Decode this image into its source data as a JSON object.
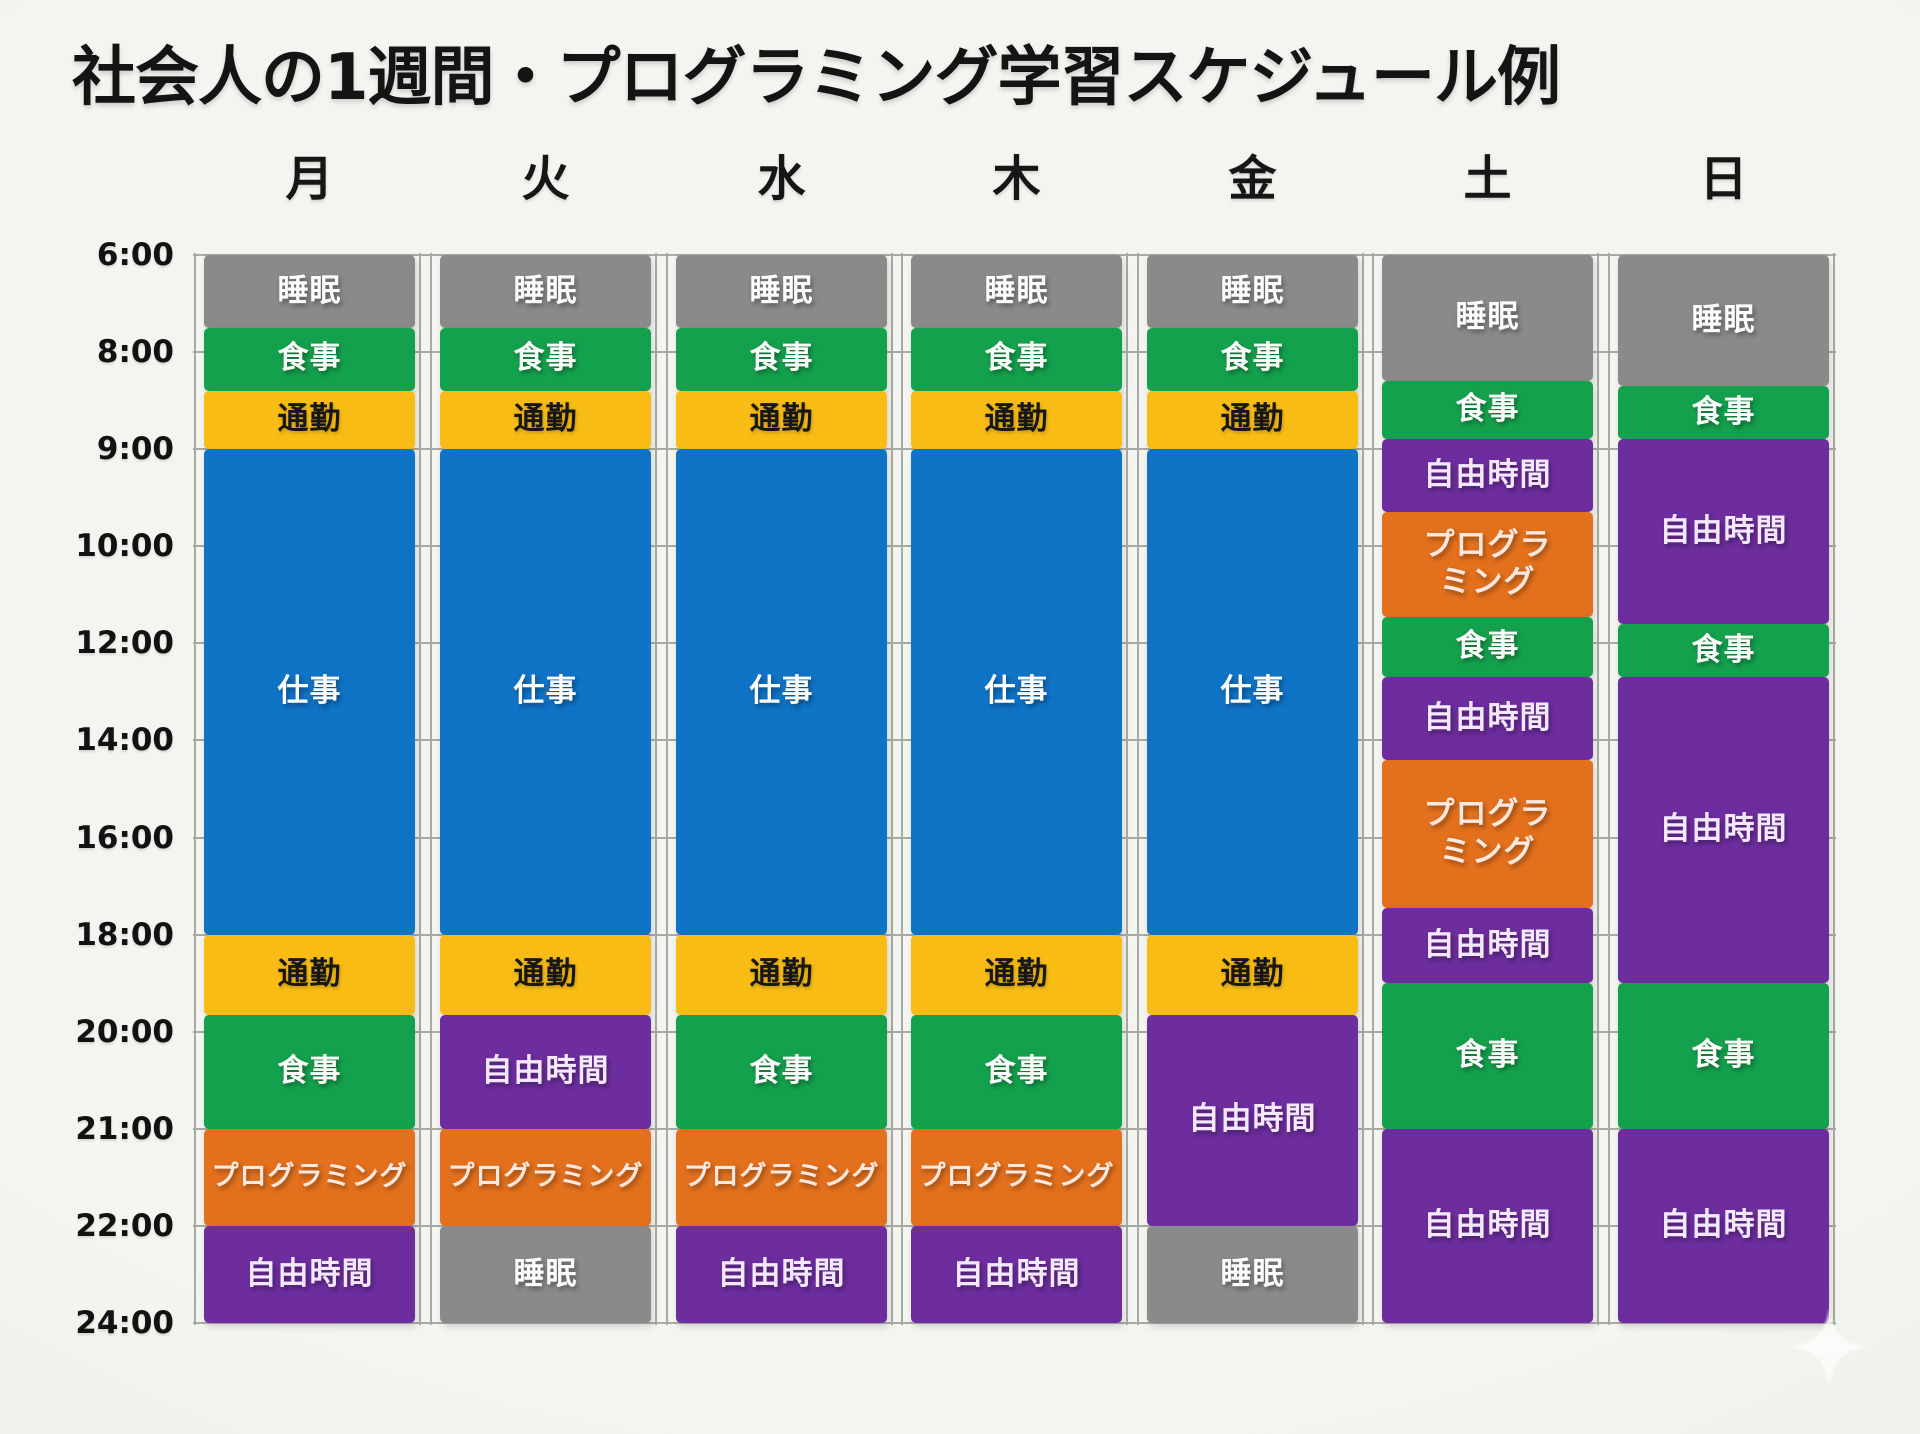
{
  "title": "社会人の1週間・プログラミング学習スケジュール例",
  "watermark": {
    "icon": "sparkle"
  },
  "activities": {
    "sleep": {
      "label": "睡眠",
      "color": "#8a8a8a",
      "text_color": "#fcfcfa"
    },
    "meal": {
      "label": "食事",
      "color": "#14a14d",
      "text_color": "#fcfcfa"
    },
    "commute": {
      "label": "通勤",
      "color": "#f8bc15",
      "text_color": "#171717"
    },
    "work": {
      "label": "仕事",
      "color": "#0f73c6",
      "text_color": "#fcfcfa"
    },
    "programming": {
      "label": "プログラミング",
      "color": "#e2701d",
      "text_color": "#ffe8df"
    },
    "free": {
      "label": "自由時間",
      "color": "#6d2d9e",
      "text_color": "#f3e8fd"
    }
  },
  "chart_data": {
    "type": "bar",
    "variant": "weekly-stacked-time-schedule",
    "title": "社会人の1週間・プログラミング学習スケジュール例",
    "legend": "none",
    "grid": "on",
    "x_axis": {
      "categories": [
        "月",
        "火",
        "水",
        "木",
        "金",
        "土",
        "日"
      ]
    },
    "y_axis": {
      "tick_labels": [
        "6:00",
        "8:00",
        "9:00",
        "10:00",
        "12:00",
        "14:00",
        "16:00",
        "18:00",
        "20:00",
        "21:00",
        "22:00",
        "24:00"
      ],
      "tick_hours": [
        6,
        8,
        9,
        10,
        12,
        14,
        16,
        18,
        20,
        21,
        22,
        24
      ],
      "direction": "top-to-bottom",
      "spacing": "equal per tick interval"
    },
    "days": [
      {
        "id": "mon",
        "label": "月",
        "blocks": [
          {
            "activity": "sleep",
            "start": 6,
            "end": 7.5
          },
          {
            "activity": "meal",
            "start": 7.5,
            "end": 8.4
          },
          {
            "activity": "commute",
            "start": 8.4,
            "end": 9
          },
          {
            "activity": "work",
            "start": 9,
            "end": 18
          },
          {
            "activity": "commute",
            "start": 18,
            "end": 19.65
          },
          {
            "activity": "meal",
            "start": 19.65,
            "end": 21
          },
          {
            "activity": "programming",
            "start": 21,
            "end": 22
          },
          {
            "activity": "free",
            "start": 22,
            "end": 24
          }
        ]
      },
      {
        "id": "tue",
        "label": "火",
        "blocks": [
          {
            "activity": "sleep",
            "start": 6,
            "end": 7.5
          },
          {
            "activity": "meal",
            "start": 7.5,
            "end": 8.4
          },
          {
            "activity": "commute",
            "start": 8.4,
            "end": 9
          },
          {
            "activity": "work",
            "start": 9,
            "end": 18
          },
          {
            "activity": "commute",
            "start": 18,
            "end": 19.65
          },
          {
            "activity": "free",
            "start": 19.65,
            "end": 21
          },
          {
            "activity": "programming",
            "start": 21,
            "end": 22
          },
          {
            "activity": "sleep",
            "start": 22,
            "end": 24
          }
        ]
      },
      {
        "id": "wed",
        "label": "水",
        "blocks": [
          {
            "activity": "sleep",
            "start": 6,
            "end": 7.5
          },
          {
            "activity": "meal",
            "start": 7.5,
            "end": 8.4
          },
          {
            "activity": "commute",
            "start": 8.4,
            "end": 9
          },
          {
            "activity": "work",
            "start": 9,
            "end": 18
          },
          {
            "activity": "commute",
            "start": 18,
            "end": 19.65
          },
          {
            "activity": "meal",
            "start": 19.65,
            "end": 21
          },
          {
            "activity": "programming",
            "start": 21,
            "end": 22
          },
          {
            "activity": "free",
            "start": 22,
            "end": 24
          }
        ]
      },
      {
        "id": "thu",
        "label": "木",
        "blocks": [
          {
            "activity": "sleep",
            "start": 6,
            "end": 7.5
          },
          {
            "activity": "meal",
            "start": 7.5,
            "end": 8.4
          },
          {
            "activity": "commute",
            "start": 8.4,
            "end": 9
          },
          {
            "activity": "work",
            "start": 9,
            "end": 18
          },
          {
            "activity": "commute",
            "start": 18,
            "end": 19.65
          },
          {
            "activity": "meal",
            "start": 19.65,
            "end": 21
          },
          {
            "activity": "programming",
            "start": 21,
            "end": 22
          },
          {
            "activity": "free",
            "start": 22,
            "end": 24
          }
        ]
      },
      {
        "id": "fri",
        "label": "金",
        "blocks": [
          {
            "activity": "sleep",
            "start": 6,
            "end": 7.5
          },
          {
            "activity": "meal",
            "start": 7.5,
            "end": 8.4
          },
          {
            "activity": "commute",
            "start": 8.4,
            "end": 9
          },
          {
            "activity": "work",
            "start": 9,
            "end": 18
          },
          {
            "activity": "commute",
            "start": 18,
            "end": 19.65
          },
          {
            "activity": "free",
            "start": 19.65,
            "end": 22
          },
          {
            "activity": "sleep",
            "start": 22,
            "end": 24
          }
        ]
      },
      {
        "id": "sat",
        "label": "土",
        "blocks": [
          {
            "activity": "sleep",
            "start": 6,
            "end": 8.3
          },
          {
            "activity": "meal",
            "start": 8.3,
            "end": 8.9
          },
          {
            "activity": "free",
            "start": 8.9,
            "end": 9.65
          },
          {
            "activity": "programming",
            "start": 9.65,
            "end": 11.45,
            "label_lines": [
              "プログラ",
              "ミング"
            ]
          },
          {
            "activity": "meal",
            "start": 11.45,
            "end": 12.7
          },
          {
            "activity": "free",
            "start": 12.7,
            "end": 14.4
          },
          {
            "activity": "programming",
            "start": 14.4,
            "end": 17.45,
            "label_lines": [
              "プログラ",
              "ミング"
            ]
          },
          {
            "activity": "free",
            "start": 17.45,
            "end": 19
          },
          {
            "activity": "meal",
            "start": 19,
            "end": 21
          },
          {
            "activity": "free",
            "start": 21,
            "end": 24
          }
        ]
      },
      {
        "id": "sun",
        "label": "日",
        "blocks": [
          {
            "activity": "sleep",
            "start": 6,
            "end": 8.35
          },
          {
            "activity": "meal",
            "start": 8.35,
            "end": 8.9
          },
          {
            "activity": "free",
            "start": 8.9,
            "end": 11.6
          },
          {
            "activity": "meal",
            "start": 11.6,
            "end": 12.7
          },
          {
            "activity": "free",
            "start": 12.7,
            "end": 19
          },
          {
            "activity": "meal",
            "start": 19,
            "end": 21
          },
          {
            "activity": "free",
            "start": 21,
            "end": 24
          }
        ]
      }
    ]
  }
}
